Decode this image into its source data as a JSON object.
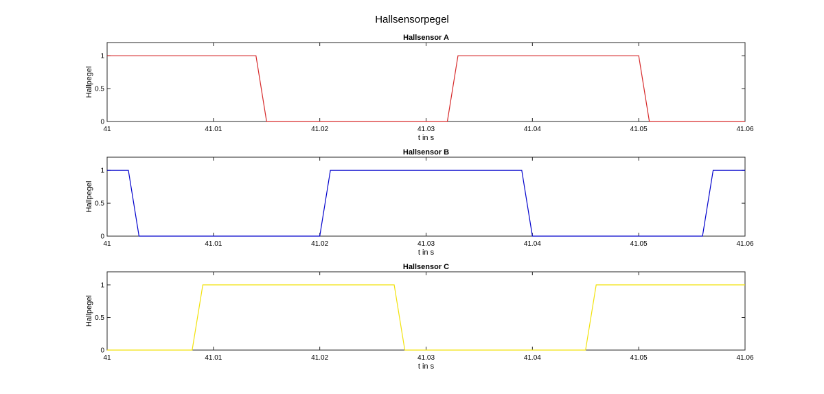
{
  "figure": {
    "title": "Hallsensorpegel"
  },
  "chart_data": [
    {
      "type": "line",
      "title": "Hallsensor A",
      "xlabel": "t in s",
      "ylabel": "Hallpegel",
      "xlim": [
        41,
        41.06
      ],
      "ylim": [
        0,
        1.2
      ],
      "xticks": [
        "41",
        "41.01",
        "41.02",
        "41.03",
        "41.04",
        "41.05",
        "41.06"
      ],
      "yticks": [
        "0",
        "0.5",
        "1"
      ],
      "series": [
        {
          "color": "#d62728",
          "x": [
            41,
            41.014,
            41.015,
            41.032,
            41.033,
            41.05,
            41.051,
            41.06
          ],
          "y": [
            1,
            1,
            0,
            0,
            1,
            1,
            0,
            0
          ]
        }
      ]
    },
    {
      "type": "line",
      "title": "Hallsensor B",
      "xlabel": "t in s",
      "ylabel": "Hallpegel",
      "xlim": [
        41,
        41.06
      ],
      "ylim": [
        0,
        1.2
      ],
      "xticks": [
        "41",
        "41.01",
        "41.02",
        "41.03",
        "41.04",
        "41.05",
        "41.06"
      ],
      "yticks": [
        "0",
        "0.5",
        "1"
      ],
      "series": [
        {
          "color": "#0000cc",
          "x": [
            41,
            41.002,
            41.003,
            41.02,
            41.021,
            41.039,
            41.04,
            41.056,
            41.057,
            41.06
          ],
          "y": [
            1,
            1,
            0,
            0,
            1,
            1,
            0,
            0,
            1,
            1
          ]
        }
      ]
    },
    {
      "type": "line",
      "title": "Hallsensor C",
      "xlabel": "t in s",
      "ylabel": "Hallpegel",
      "xlim": [
        41,
        41.06
      ],
      "ylim": [
        0,
        1.2
      ],
      "xticks": [
        "41",
        "41.01",
        "41.02",
        "41.03",
        "41.04",
        "41.05",
        "41.06"
      ],
      "yticks": [
        "0",
        "0.5",
        "1"
      ],
      "series": [
        {
          "color": "#f2e20a",
          "x": [
            41,
            41.008,
            41.009,
            41.027,
            41.028,
            41.045,
            41.046,
            41.06
          ],
          "y": [
            0,
            0,
            1,
            1,
            0,
            0,
            1,
            1
          ]
        }
      ]
    }
  ]
}
